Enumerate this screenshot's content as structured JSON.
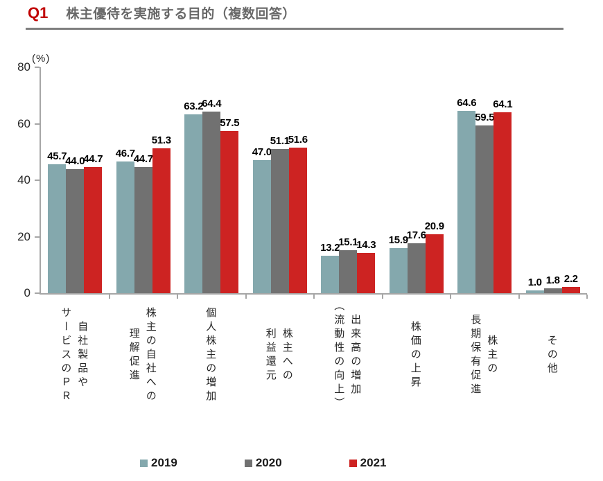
{
  "header": {
    "q_label": "Q1",
    "title": "株主優待を実施する目的（複数回答）"
  },
  "chart_data": {
    "type": "bar",
    "title": "株主優待を実施する目的（複数回答）",
    "unit_label": "(%)",
    "ylim": [
      0,
      80
    ],
    "yticks": [
      0,
      20,
      40,
      60,
      80
    ],
    "grid": false,
    "legend_position": "bottom",
    "categories": [
      "自社製品や\nサービスのＰＲ",
      "株主の自社への\n理解促進",
      "個人株主の増加",
      "株主への\n利益還元",
      "出来高の増加\n（流動性の向上）",
      "株価の上昇",
      "株主の\n長期保有促進",
      "その他"
    ],
    "series": [
      {
        "name": "2019",
        "color": "#84a8ad",
        "values": [
          45.7,
          46.7,
          63.2,
          47.0,
          13.2,
          15.9,
          64.6,
          1.0
        ]
      },
      {
        "name": "2020",
        "color": "#717171",
        "values": [
          44.0,
          44.7,
          64.4,
          51.1,
          15.1,
          17.6,
          59.5,
          1.8
        ]
      },
      {
        "name": "2021",
        "color": "#cd2322",
        "values": [
          44.7,
          51.3,
          57.5,
          51.6,
          14.3,
          20.9,
          64.1,
          2.2
        ]
      }
    ],
    "colors": {
      "accent_red": "#c00000",
      "axis_gray": "#a6a6a6",
      "title_gray": "#686868"
    }
  }
}
